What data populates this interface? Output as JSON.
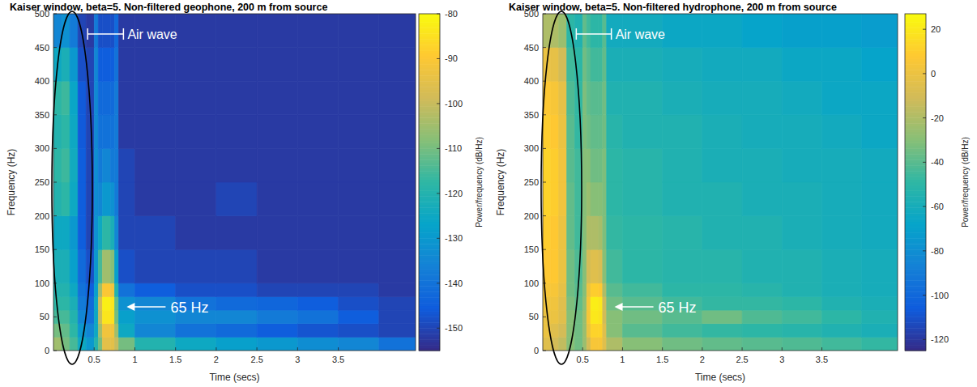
{
  "chart_data": [
    {
      "type": "heatmap",
      "title": "Kaiser window, beta=5. Non-filtered geophone, 200 m from source",
      "x_label": "Time (secs)",
      "y_label": "Frequency (Hz)",
      "colorbar_label": "Power/frequency (dB/Hz)",
      "xlim": [
        0,
        4.45
      ],
      "ylim": [
        0,
        500
      ],
      "xticks": [
        0.5,
        1,
        1.5,
        2,
        2.5,
        3,
        3.5
      ],
      "yticks": [
        0,
        50,
        100,
        150,
        200,
        250,
        300,
        350,
        400,
        450,
        500
      ],
      "x_edges": [
        0,
        0.1,
        0.2,
        0.3,
        0.4,
        0.5,
        0.55,
        0.6,
        0.7,
        0.75,
        0.8,
        1.0,
        1.5,
        2.0,
        2.5,
        3.0,
        3.5,
        4.0,
        4.45
      ],
      "y_edges": [
        0,
        20,
        40,
        60,
        80,
        100,
        150,
        200,
        250,
        300,
        350,
        400,
        450,
        500
      ],
      "cells": [
        [
          -105,
          -110,
          -115,
          -125,
          -130,
          -120,
          -110,
          -95,
          -95,
          -100,
          -110,
          -120,
          -125,
          -128,
          -130,
          -133,
          -135,
          -140
        ],
        [
          -110,
          -112,
          -118,
          -130,
          -135,
          -125,
          -105,
          -92,
          -92,
          -105,
          -125,
          -135,
          -140,
          -142,
          -145,
          -147,
          -148,
          -150
        ],
        [
          -115,
          -115,
          -120,
          -135,
          -140,
          -125,
          -100,
          -84,
          -85,
          -110,
          -128,
          -132,
          -135,
          -135,
          -138,
          -140,
          -145,
          -150
        ],
        [
          -118,
          -118,
          -122,
          -138,
          -142,
          -125,
          -98,
          -82,
          -84,
          -112,
          -132,
          -135,
          -140,
          -142,
          -143,
          -145,
          -148,
          -150
        ],
        [
          -120,
          -120,
          -125,
          -140,
          -145,
          -128,
          -105,
          -90,
          -92,
          -120,
          -140,
          -145,
          -148,
          -148,
          -150,
          -150,
          -150,
          -152
        ],
        [
          -122,
          -122,
          -128,
          -142,
          -148,
          -130,
          -115,
          -105,
          -108,
          -128,
          -148,
          -150,
          -150,
          -150,
          -152,
          -152,
          -152,
          -152
        ],
        [
          -125,
          -125,
          -130,
          -145,
          -150,
          -132,
          -125,
          -118,
          -122,
          -135,
          -150,
          -150,
          -152,
          -152,
          -152,
          -152,
          -152,
          -152
        ],
        [
          -120,
          -118,
          -125,
          -145,
          -150,
          -133,
          -135,
          -130,
          -132,
          -138,
          -150,
          -152,
          -152,
          -150,
          -152,
          -152,
          -152,
          -152
        ],
        [
          -118,
          -116,
          -124,
          -145,
          -150,
          -133,
          -138,
          -135,
          -138,
          -138,
          -150,
          -152,
          -152,
          -152,
          -152,
          -152,
          -152,
          -152
        ],
        [
          -120,
          -118,
          -125,
          -146,
          -150,
          -134,
          -140,
          -140,
          -140,
          -138,
          -152,
          -152,
          -152,
          -152,
          -152,
          -152,
          -152,
          -152
        ],
        [
          -118,
          -116,
          -126,
          -146,
          -150,
          -134,
          -142,
          -142,
          -142,
          -138,
          -152,
          -152,
          -152,
          -152,
          -152,
          -152,
          -152,
          -152
        ],
        [
          -125,
          -122,
          -130,
          -148,
          -150,
          -135,
          -145,
          -145,
          -145,
          -140,
          -152,
          -152,
          -152,
          -152,
          -152,
          -152,
          -152,
          -152
        ],
        [
          -135,
          -132,
          -138,
          -150,
          -152,
          -138,
          -148,
          -148,
          -148,
          -142,
          -152,
          -152,
          -152,
          -152,
          -152,
          -152,
          -152,
          -152
        ]
      ],
      "clim": [
        -155,
        -80
      ],
      "cticks": [
        -150,
        -140,
        -130,
        -120,
        -110,
        -100,
        -90,
        -80
      ],
      "annotations": [
        {
          "text": "Air wave",
          "x": [
            0.42,
            0.86
          ],
          "y": 470
        },
        {
          "text": "65 Hz",
          "x": 0.9,
          "y": 65
        }
      ]
    },
    {
      "type": "heatmap",
      "title": "Kaiser window, beta=5. Non-filtered hydrophone, 200 m from source",
      "x_label": "Time (secs)",
      "y_label": "Frequency (Hz)",
      "colorbar_label": "Power/frequency (dB/Hz)",
      "xlim": [
        0,
        4.45
      ],
      "ylim": [
        0,
        500
      ],
      "xticks": [
        0.5,
        1,
        1.5,
        2,
        2.5,
        3,
        3.5
      ],
      "yticks": [
        0,
        50,
        100,
        150,
        200,
        250,
        300,
        350,
        400,
        450,
        500
      ],
      "x_edges": [
        0,
        0.1,
        0.2,
        0.3,
        0.4,
        0.5,
        0.55,
        0.6,
        0.7,
        0.75,
        0.8,
        1.0,
        1.5,
        2.0,
        2.5,
        3.0,
        3.5,
        4.0,
        4.45
      ],
      "y_edges": [
        0,
        20,
        40,
        60,
        80,
        100,
        150,
        200,
        250,
        300,
        350,
        400,
        450,
        500
      ],
      "cells": [
        [
          -5,
          -10,
          -15,
          -30,
          -35,
          -25,
          -10,
          5,
          5,
          -5,
          -20,
          -30,
          -35,
          -38,
          -40,
          -42,
          -45,
          -48
        ],
        [
          0,
          -5,
          -10,
          -30,
          -35,
          -25,
          0,
          12,
          12,
          -5,
          -30,
          -40,
          -45,
          -48,
          -50,
          -52,
          -55,
          -58
        ],
        [
          0,
          0,
          -5,
          -30,
          -35,
          -25,
          5,
          20,
          18,
          -10,
          -30,
          -35,
          -40,
          -35,
          -42,
          -45,
          -50,
          -55
        ],
        [
          2,
          2,
          -5,
          -32,
          -38,
          -28,
          5,
          22,
          20,
          -12,
          -35,
          -40,
          -45,
          -48,
          -48,
          -50,
          -55,
          -58
        ],
        [
          5,
          5,
          -2,
          -35,
          -40,
          -30,
          0,
          10,
          8,
          -20,
          -40,
          -45,
          -50,
          -50,
          -52,
          -55,
          -58,
          -60
        ],
        [
          8,
          8,
          0,
          -35,
          -42,
          -30,
          -10,
          -5,
          -8,
          -30,
          -45,
          -50,
          -52,
          -52,
          -55,
          -55,
          -58,
          -60
        ],
        [
          10,
          8,
          0,
          -38,
          -45,
          -30,
          -20,
          -20,
          -22,
          -32,
          -48,
          -50,
          -52,
          -55,
          -55,
          -58,
          -60,
          -62
        ],
        [
          12,
          10,
          2,
          -38,
          -45,
          -30,
          -25,
          -30,
          -30,
          -32,
          -50,
          -52,
          -55,
          -55,
          -58,
          -58,
          -60,
          -62
        ],
        [
          12,
          10,
          2,
          -40,
          -45,
          -30,
          -30,
          -35,
          -35,
          -32,
          -50,
          -52,
          -55,
          -58,
          -58,
          -60,
          -60,
          -62
        ],
        [
          10,
          8,
          0,
          -40,
          -48,
          -32,
          -35,
          -38,
          -38,
          -35,
          -52,
          -55,
          -55,
          -58,
          -60,
          -60,
          -62,
          -65
        ],
        [
          8,
          5,
          -2,
          -42,
          -48,
          -32,
          -38,
          -40,
          -40,
          -35,
          -55,
          -55,
          -58,
          -60,
          -60,
          -62,
          -65,
          -65
        ],
        [
          0,
          -2,
          -10,
          -45,
          -50,
          -35,
          -40,
          -45,
          -45,
          -38,
          -58,
          -58,
          -60,
          -62,
          -62,
          -65,
          -65,
          -68
        ],
        [
          -20,
          -20,
          -25,
          -50,
          -55,
          -38,
          -45,
          -50,
          -50,
          -40,
          -62,
          -62,
          -65,
          -65,
          -68,
          -70,
          -70,
          -72
        ]
      ],
      "clim": [
        -125,
        27
      ],
      "cticks": [
        -120,
        -100,
        -80,
        -60,
        -40,
        -20,
        0,
        20
      ],
      "annotations": [
        {
          "text": "Air wave",
          "x": [
            0.42,
            0.86
          ],
          "y": 470
        },
        {
          "text": "65 Hz",
          "x": 0.9,
          "y": 65
        }
      ]
    }
  ]
}
